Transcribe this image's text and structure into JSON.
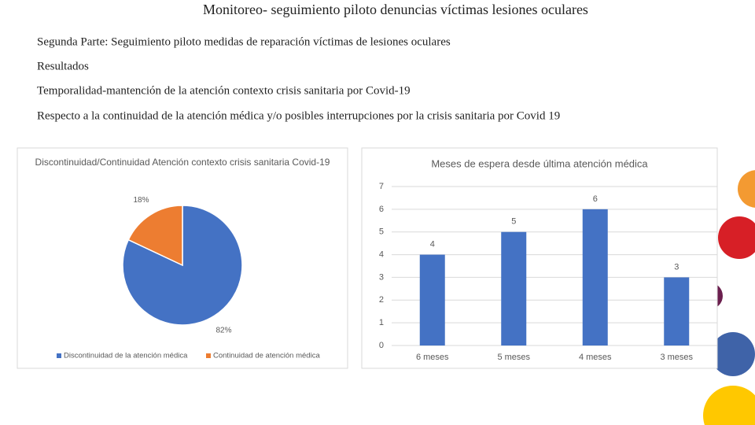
{
  "title": "Monitoreo- seguimiento piloto denuncias víctimas lesiones oculares",
  "lines": [
    "Segunda Parte: Seguimiento piloto medidas de reparación víctimas de lesiones oculares",
    "Resultados",
    "Temporalidad-mantención de la atención contexto crisis sanitaria por Covid-19",
    "Respecto a la continuidad de la atención médica y/o posibles interrupciones por la crisis sanitaria por Covid 19"
  ],
  "chart_data": [
    {
      "type": "pie",
      "title": "Discontinuidad/Continuidad Atención contexto crisis sanitaria Covid-19",
      "categories": [
        "Discontinuidad de la atención médica",
        "Continuidad de atención médica"
      ],
      "values": [
        82,
        18
      ],
      "value_labels": [
        "82%",
        "18%"
      ],
      "colors": [
        "#4472c4",
        "#ed7d31"
      ],
      "legend": "bottom"
    },
    {
      "type": "bar",
      "title": "Meses de espera desde última atención médica",
      "categories": [
        "6 meses",
        "5 meses",
        "4 meses",
        "3 meses"
      ],
      "values": [
        4,
        5,
        6,
        3
      ],
      "color": "#4472c4",
      "ylim": [
        0,
        7
      ],
      "yticks": [
        0,
        1,
        2,
        3,
        4,
        5,
        6,
        7
      ],
      "grid": true
    }
  ]
}
